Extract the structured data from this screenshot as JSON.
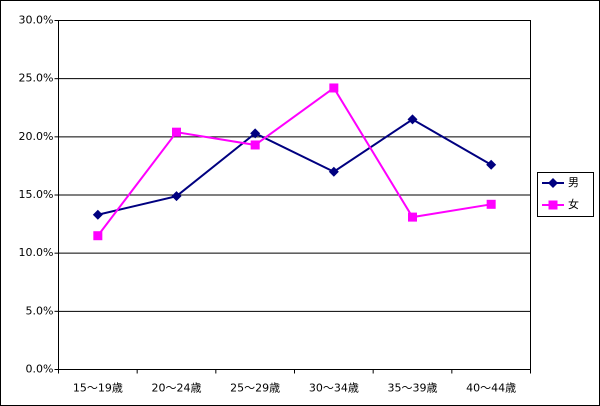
{
  "chart_data": {
    "type": "line",
    "categories": [
      "15～19歳",
      "20～24歳",
      "25～29歳",
      "30～34歳",
      "35～39歳",
      "40～44歳"
    ],
    "series": [
      {
        "name": "男",
        "color": "#000080",
        "marker": "diamond",
        "values": [
          13.3,
          14.9,
          20.3,
          17.0,
          21.5,
          17.6
        ]
      },
      {
        "name": "女",
        "color": "#ff00ff",
        "marker": "square",
        "values": [
          11.5,
          20.4,
          19.3,
          24.2,
          13.1,
          14.2
        ]
      }
    ],
    "ylim": [
      0,
      30
    ],
    "yticks": [
      {
        "value": 0,
        "label": "0.0%"
      },
      {
        "value": 5,
        "label": "5.0%"
      },
      {
        "value": 10,
        "label": "10.0%"
      },
      {
        "value": 15,
        "label": "15.0%"
      },
      {
        "value": 20,
        "label": "20.0%"
      },
      {
        "value": 25,
        "label": "25.0%"
      },
      {
        "value": 30,
        "label": "30.0%"
      }
    ],
    "grid": true,
    "legend": "right"
  }
}
